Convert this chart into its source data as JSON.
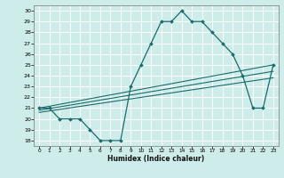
{
  "title": "",
  "xlabel": "Humidex (Indice chaleur)",
  "bg_color": "#ceecea",
  "line_color": "#1a6b6b",
  "xlim": [
    -0.5,
    23.5
  ],
  "ylim": [
    17.5,
    30.5
  ],
  "xticks": [
    0,
    1,
    2,
    3,
    4,
    5,
    6,
    7,
    8,
    9,
    10,
    11,
    12,
    13,
    14,
    15,
    16,
    17,
    18,
    19,
    20,
    21,
    22,
    23
  ],
  "yticks": [
    18,
    19,
    20,
    21,
    22,
    23,
    24,
    25,
    26,
    27,
    28,
    29,
    30
  ],
  "main_line": {
    "x": [
      0,
      1,
      2,
      3,
      4,
      5,
      6,
      7,
      8,
      9,
      10,
      11,
      12,
      13,
      14,
      15,
      16,
      17,
      18,
      19,
      20,
      21,
      22,
      23
    ],
    "y": [
      21,
      21,
      20,
      20,
      20,
      19,
      18,
      18,
      18,
      23,
      25,
      27,
      29,
      29,
      30,
      29,
      29,
      28,
      27,
      26,
      24,
      21,
      21,
      25
    ]
  },
  "reg_lines": [
    {
      "x": [
        0,
        23
      ],
      "y": [
        21.0,
        25.0
      ]
    },
    {
      "x": [
        0,
        23
      ],
      "y": [
        20.8,
        24.4
      ]
    },
    {
      "x": [
        0,
        23
      ],
      "y": [
        20.6,
        23.8
      ]
    }
  ],
  "figsize": [
    3.2,
    2.0
  ],
  "dpi": 100
}
